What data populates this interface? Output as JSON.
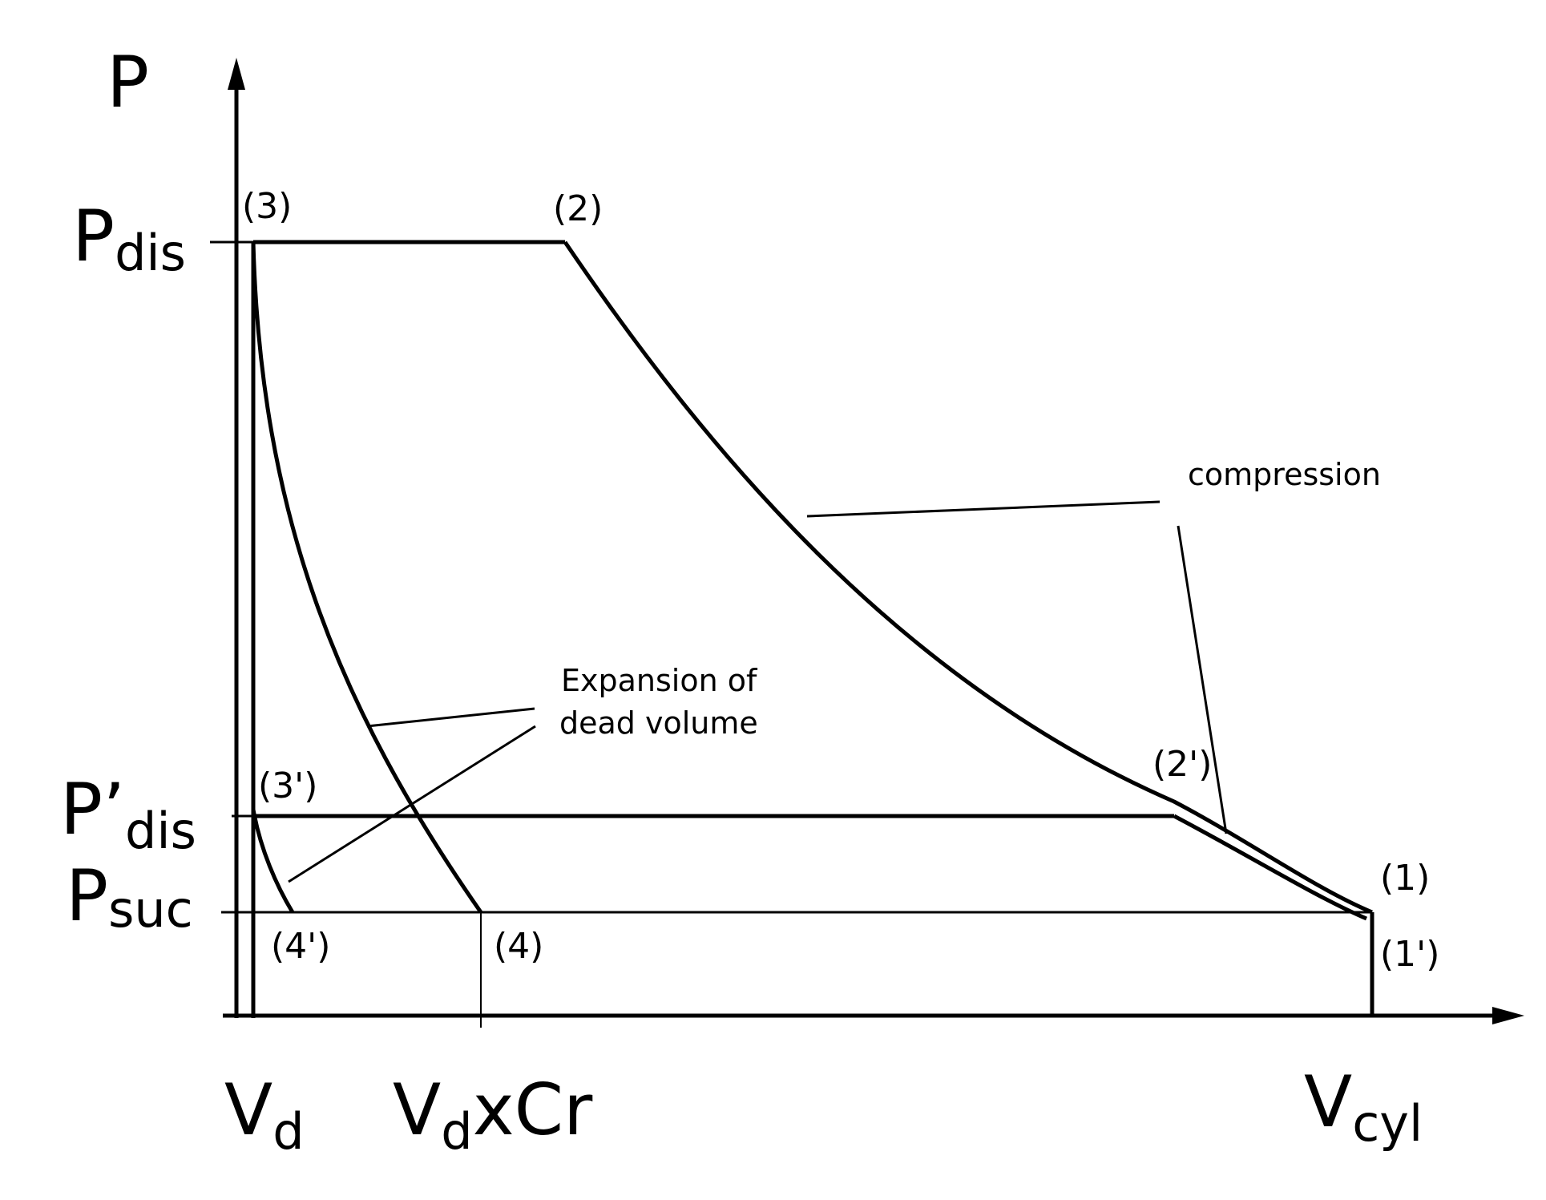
{
  "axes": {
    "y_label": "P",
    "p_dis_main": "P",
    "p_dis_sub": "dis",
    "p_dis_prime_main": "P’",
    "p_dis_prime_sub": "dis",
    "p_suc_main": "P",
    "p_suc_sub": "suc",
    "v_d_main": "V",
    "v_d_sub": "d",
    "v_dxcr_main": "V",
    "v_dxcr_sub": "d",
    "v_dxcr_tail": "xCr",
    "v_cyl_main": "V",
    "v_cyl_sub": "cyl"
  },
  "points": {
    "p1": "(1)",
    "p1p": "(1')",
    "p2": "(2)",
    "p2p": "(2')",
    "p3": "(3)",
    "p3p": "(3')",
    "p4": "(4)",
    "p4p": "(4')"
  },
  "annotations": {
    "compression": "compression",
    "expansion_line1": "Expansion of",
    "expansion_line2": "dead volume"
  },
  "colors": {
    "stroke": "#000000",
    "background": "#ffffff"
  }
}
